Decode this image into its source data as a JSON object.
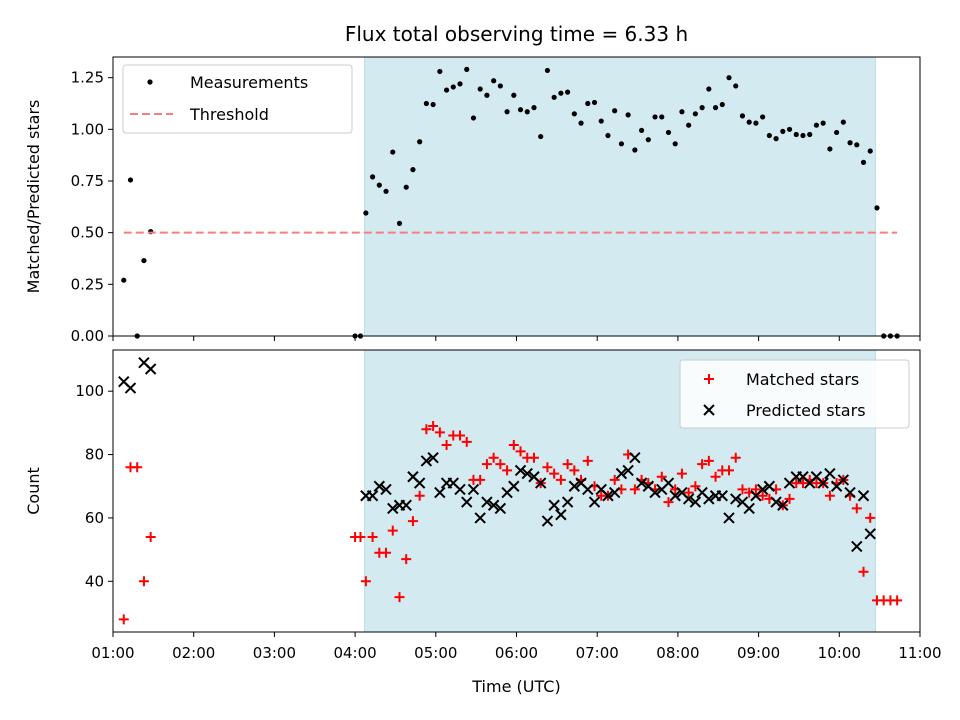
{
  "chart_data": [
    {
      "type": "scatter",
      "title": "Flux total observing time = 6.33 h",
      "ylabel": "Matched/Predicted stars",
      "xlabel": "",
      "xlim": [
        "01:00",
        "11:00"
      ],
      "ylim": [
        0,
        1.35
      ],
      "yticks": [
        "0.00",
        "0.25",
        "0.50",
        "0.75",
        "1.00",
        "1.25"
      ],
      "legend_position": "top-left",
      "observing_window": {
        "start": "04:07",
        "end": "10:27",
        "color": "#d4eaf1"
      },
      "series": [
        {
          "name": "Measurements",
          "marker": "dot",
          "color": "#000000",
          "points": [
            [
              "01:08",
              0.27
            ],
            [
              "01:13",
              0.755
            ],
            [
              "01:18",
              0.0
            ],
            [
              "01:23",
              0.365
            ],
            [
              "01:28",
              0.505
            ],
            [
              "04:00",
              0.0
            ],
            [
              "04:04",
              0.0
            ],
            [
              "04:08",
              0.595
            ],
            [
              "04:13",
              0.77
            ],
            [
              "04:18",
              0.73
            ],
            [
              "04:23",
              0.7
            ],
            [
              "04:28",
              0.89
            ],
            [
              "04:33",
              0.545
            ],
            [
              "04:38",
              0.72
            ],
            [
              "04:43",
              0.805
            ],
            [
              "04:48",
              0.94
            ],
            [
              "04:53",
              1.125
            ],
            [
              "04:58",
              1.12
            ],
            [
              "05:03",
              1.28
            ],
            [
              "05:08",
              1.19
            ],
            [
              "05:13",
              1.205
            ],
            [
              "05:18",
              1.22
            ],
            [
              "05:23",
              1.29
            ],
            [
              "05:28",
              1.055
            ],
            [
              "05:33",
              1.195
            ],
            [
              "05:38",
              1.165
            ],
            [
              "05:43",
              1.235
            ],
            [
              "05:48",
              1.21
            ],
            [
              "05:53",
              1.085
            ],
            [
              "05:58",
              1.165
            ],
            [
              "06:03",
              1.095
            ],
            [
              "06:08",
              1.085
            ],
            [
              "06:13",
              1.105
            ],
            [
              "06:18",
              0.965
            ],
            [
              "06:23",
              1.285
            ],
            [
              "06:28",
              1.155
            ],
            [
              "06:33",
              1.175
            ],
            [
              "06:38",
              1.18
            ],
            [
              "06:43",
              1.075
            ],
            [
              "06:48",
              1.03
            ],
            [
              "06:53",
              1.125
            ],
            [
              "06:58",
              1.13
            ],
            [
              "07:03",
              1.04
            ],
            [
              "07:08",
              0.97
            ],
            [
              "07:13",
              1.09
            ],
            [
              "07:18",
              0.93
            ],
            [
              "07:23",
              1.07
            ],
            [
              "07:28",
              0.9
            ],
            [
              "07:33",
              0.995
            ],
            [
              "07:38",
              0.95
            ],
            [
              "07:43",
              1.06
            ],
            [
              "07:48",
              1.06
            ],
            [
              "07:53",
              0.985
            ],
            [
              "07:58",
              0.93
            ],
            [
              "08:03",
              1.085
            ],
            [
              "08:08",
              1.02
            ],
            [
              "08:13",
              1.075
            ],
            [
              "08:18",
              1.105
            ],
            [
              "08:23",
              1.195
            ],
            [
              "08:28",
              1.105
            ],
            [
              "08:33",
              1.12
            ],
            [
              "08:38",
              1.25
            ],
            [
              "08:43",
              1.21
            ],
            [
              "08:48",
              1.065
            ],
            [
              "08:53",
              1.035
            ],
            [
              "08:58",
              1.03
            ],
            [
              "09:03",
              1.06
            ],
            [
              "09:08",
              0.97
            ],
            [
              "09:13",
              0.955
            ],
            [
              "09:18",
              0.99
            ],
            [
              "09:23",
              1.0
            ],
            [
              "09:28",
              0.975
            ],
            [
              "09:33",
              0.97
            ],
            [
              "09:38",
              0.975
            ],
            [
              "09:43",
              1.02
            ],
            [
              "09:48",
              1.03
            ],
            [
              "09:53",
              0.905
            ],
            [
              "09:58",
              0.985
            ],
            [
              "10:03",
              1.035
            ],
            [
              "10:08",
              0.935
            ],
            [
              "10:13",
              0.925
            ],
            [
              "10:18",
              0.84
            ],
            [
              "10:23",
              0.895
            ],
            [
              "10:28",
              0.62
            ],
            [
              "10:33",
              0.0
            ],
            [
              "10:38",
              0.0
            ],
            [
              "10:43",
              0.0
            ]
          ]
        },
        {
          "name": "Threshold",
          "marker": "dashed-line",
          "color": "#f47f7f",
          "points": [
            [
              "01:08",
              0.5
            ],
            [
              "10:43",
              0.5
            ]
          ]
        }
      ]
    },
    {
      "type": "scatter",
      "title": "",
      "ylabel": "Count",
      "xlabel": "Time (UTC)",
      "xlim": [
        "01:00",
        "11:00"
      ],
      "ylim": [
        24,
        113
      ],
      "yticks": [
        "40",
        "60",
        "80",
        "100"
      ],
      "xticks": [
        "01:00",
        "02:00",
        "03:00",
        "04:00",
        "05:00",
        "06:00",
        "07:00",
        "08:00",
        "09:00",
        "10:00",
        "11:00"
      ],
      "legend_position": "top-right",
      "observing_window": {
        "start": "04:07",
        "end": "10:27",
        "color": "#d4eaf1"
      },
      "series": [
        {
          "name": "Matched stars",
          "marker": "plus",
          "color": "#ff0000",
          "points": [
            [
              "01:08",
              28
            ],
            [
              "01:13",
              76
            ],
            [
              "01:18",
              76
            ],
            [
              "01:23",
              40
            ],
            [
              "01:28",
              54
            ],
            [
              "04:00",
              54
            ],
            [
              "04:04",
              54
            ],
            [
              "04:08",
              40
            ],
            [
              "04:13",
              54
            ],
            [
              "04:18",
              49
            ],
            [
              "04:23",
              49
            ],
            [
              "04:28",
              56
            ],
            [
              "04:33",
              35
            ],
            [
              "04:38",
              47
            ],
            [
              "04:43",
              59
            ],
            [
              "04:48",
              67
            ],
            [
              "04:53",
              88
            ],
            [
              "04:58",
              89
            ],
            [
              "05:03",
              87
            ],
            [
              "05:08",
              83
            ],
            [
              "05:13",
              86
            ],
            [
              "05:18",
              86
            ],
            [
              "05:23",
              84
            ],
            [
              "05:28",
              72
            ],
            [
              "05:33",
              72
            ],
            [
              "05:38",
              77
            ],
            [
              "05:43",
              79
            ],
            [
              "05:48",
              77
            ],
            [
              "05:53",
              75
            ],
            [
              "05:58",
              83
            ],
            [
              "06:03",
              81
            ],
            [
              "06:08",
              79
            ],
            [
              "06:13",
              79
            ],
            [
              "06:18",
              71
            ],
            [
              "06:23",
              76
            ],
            [
              "06:28",
              74
            ],
            [
              "06:33",
              72
            ],
            [
              "06:38",
              77
            ],
            [
              "06:43",
              75
            ],
            [
              "06:48",
              72
            ],
            [
              "06:53",
              78
            ],
            [
              "06:58",
              70
            ],
            [
              "07:03",
              67
            ],
            [
              "07:08",
              67
            ],
            [
              "07:13",
              72
            ],
            [
              "07:18",
              69
            ],
            [
              "07:23",
              80
            ],
            [
              "07:28",
              69
            ],
            [
              "07:33",
              72
            ],
            [
              "07:38",
              71
            ],
            [
              "07:43",
              69
            ],
            [
              "07:48",
              73
            ],
            [
              "07:53",
              65
            ],
            [
              "07:58",
              69
            ],
            [
              "08:03",
              74
            ],
            [
              "08:08",
              68
            ],
            [
              "08:13",
              70
            ],
            [
              "08:18",
              77
            ],
            [
              "08:23",
              78
            ],
            [
              "08:28",
              73
            ],
            [
              "08:33",
              75
            ],
            [
              "08:38",
              75
            ],
            [
              "08:43",
              79
            ],
            [
              "08:48",
              69
            ],
            [
              "08:53",
              68
            ],
            [
              "08:58",
              69
            ],
            [
              "09:03",
              67
            ],
            [
              "09:08",
              66
            ],
            [
              "09:13",
              69
            ],
            [
              "09:18",
              64
            ],
            [
              "09:23",
              66
            ],
            [
              "09:28",
              71
            ],
            [
              "09:33",
              71
            ],
            [
              "09:38",
              72
            ],
            [
              "09:43",
              71
            ],
            [
              "09:48",
              71
            ],
            [
              "09:53",
              67
            ],
            [
              "09:58",
              71
            ],
            [
              "10:03",
              72
            ],
            [
              "10:08",
              67
            ],
            [
              "10:13",
              63
            ],
            [
              "10:18",
              43
            ],
            [
              "10:23",
              60
            ],
            [
              "10:28",
              34
            ],
            [
              "10:33",
              34
            ],
            [
              "10:38",
              34
            ],
            [
              "10:43",
              34
            ]
          ]
        },
        {
          "name": "Predicted stars",
          "marker": "x",
          "color": "#000000",
          "points": [
            [
              "01:08",
              103
            ],
            [
              "01:13",
              101
            ],
            [
              "01:23",
              109
            ],
            [
              "01:28",
              107
            ],
            [
              "04:08",
              67
            ],
            [
              "04:13",
              67
            ],
            [
              "04:18",
              70
            ],
            [
              "04:23",
              69
            ],
            [
              "04:28",
              63
            ],
            [
              "04:33",
              64
            ],
            [
              "04:38",
              64
            ],
            [
              "04:43",
              73
            ],
            [
              "04:48",
              71
            ],
            [
              "04:53",
              78
            ],
            [
              "04:58",
              79
            ],
            [
              "05:03",
              68
            ],
            [
              "05:08",
              71
            ],
            [
              "05:13",
              71
            ],
            [
              "05:18",
              69
            ],
            [
              "05:23",
              65
            ],
            [
              "05:28",
              69
            ],
            [
              "05:33",
              60
            ],
            [
              "05:38",
              65
            ],
            [
              "05:43",
              64
            ],
            [
              "05:48",
              63
            ],
            [
              "05:53",
              68
            ],
            [
              "05:58",
              70
            ],
            [
              "06:03",
              75
            ],
            [
              "06:08",
              74
            ],
            [
              "06:13",
              73
            ],
            [
              "06:18",
              71
            ],
            [
              "06:23",
              59
            ],
            [
              "06:28",
              64
            ],
            [
              "06:33",
              61
            ],
            [
              "06:38",
              65
            ],
            [
              "06:43",
              70
            ],
            [
              "06:48",
              71
            ],
            [
              "06:53",
              69
            ],
            [
              "06:58",
              65
            ],
            [
              "07:03",
              69
            ],
            [
              "07:08",
              67
            ],
            [
              "07:13",
              68
            ],
            [
              "07:18",
              74
            ],
            [
              "07:23",
              75
            ],
            [
              "07:28",
              79
            ],
            [
              "07:33",
              71
            ],
            [
              "07:38",
              70
            ],
            [
              "07:43",
              68
            ],
            [
              "07:48",
              69
            ],
            [
              "07:53",
              71
            ],
            [
              "07:58",
              67
            ],
            [
              "08:03",
              68
            ],
            [
              "08:08",
              66
            ],
            [
              "08:13",
              65
            ],
            [
              "08:18",
              68
            ],
            [
              "08:23",
              66
            ],
            [
              "08:28",
              67
            ],
            [
              "08:33",
              67
            ],
            [
              "08:38",
              60
            ],
            [
              "08:43",
              66
            ],
            [
              "08:48",
              65
            ],
            [
              "08:53",
              63
            ],
            [
              "08:58",
              67
            ],
            [
              "09:03",
              69
            ],
            [
              "09:08",
              70
            ],
            [
              "09:13",
              65
            ],
            [
              "09:18",
              64
            ],
            [
              "09:23",
              71
            ],
            [
              "09:28",
              73
            ],
            [
              "09:33",
              73
            ],
            [
              "09:38",
              71
            ],
            [
              "09:43",
              73
            ],
            [
              "09:48",
              71
            ],
            [
              "09:53",
              74
            ],
            [
              "09:58",
              70
            ],
            [
              "10:03",
              72
            ],
            [
              "10:08",
              68
            ],
            [
              "10:13",
              51
            ],
            [
              "10:18",
              67
            ],
            [
              "10:23",
              55
            ]
          ]
        }
      ]
    }
  ]
}
